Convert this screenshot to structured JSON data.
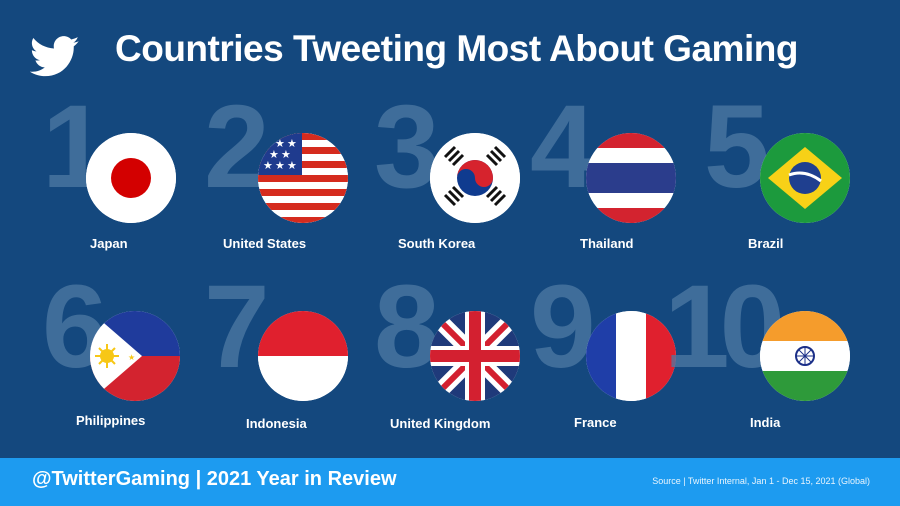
{
  "header": {
    "logo_icon": "twitter-bird-icon",
    "title": "Countries Tweeting Most About Gaming"
  },
  "colors": {
    "background": "#14487e",
    "footer": "#1d9bf0",
    "rank_numeral": "#4e7aa4"
  },
  "rankings": [
    {
      "rank": "1",
      "country": "Japan",
      "flag_icon": "japan-flag-icon"
    },
    {
      "rank": "2",
      "country": "United States",
      "flag_icon": "united-states-flag-icon"
    },
    {
      "rank": "3",
      "country": "South Korea",
      "flag_icon": "south-korea-flag-icon"
    },
    {
      "rank": "4",
      "country": "Thailand",
      "flag_icon": "thailand-flag-icon"
    },
    {
      "rank": "5",
      "country": "Brazil",
      "flag_icon": "brazil-flag-icon"
    },
    {
      "rank": "6",
      "country": "Philippines",
      "flag_icon": "philippines-flag-icon"
    },
    {
      "rank": "7",
      "country": "Indonesia",
      "flag_icon": "indonesia-flag-icon"
    },
    {
      "rank": "8",
      "country": "United Kingdom",
      "flag_icon": "united-kingdom-flag-icon"
    },
    {
      "rank": "9",
      "country": "France",
      "flag_icon": "france-flag-icon"
    },
    {
      "rank": "10",
      "country": "India",
      "flag_icon": "india-flag-icon"
    }
  ],
  "footer": {
    "handle_text": "@TwitterGaming | 2021 Year in Review",
    "source": "Source | Twitter Internal, Jan 1 - Dec 15, 2021 (Global)"
  }
}
